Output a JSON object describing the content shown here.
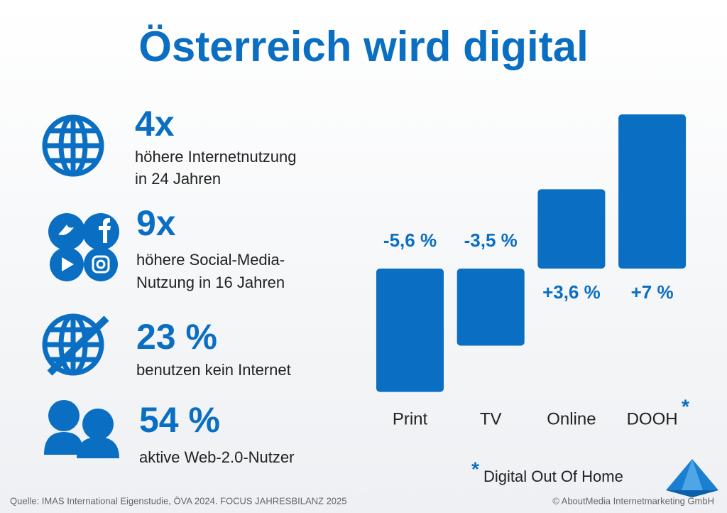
{
  "title": "Österreich wird digital",
  "stats": [
    {
      "value": "4x",
      "description": [
        "höhere Internetnutzung",
        "in 24 Jahren"
      ]
    },
    {
      "value": "9x",
      "description": [
        "höhere Social-Media-",
        "Nutzung in 16 Jahren"
      ]
    },
    {
      "value": "23 %",
      "description": [
        "benutzen kein Internet"
      ]
    },
    {
      "value": "54 %",
      "description": [
        "aktive Web-2.0-Nutzer"
      ]
    }
  ],
  "chart_data": {
    "type": "bar",
    "categories": [
      "Print",
      "TV",
      "Online",
      "DOOH"
    ],
    "values": [
      -5.6,
      -3.5,
      3.6,
      7
    ],
    "value_labels": [
      "-5,6 %",
      "-3,5 %",
      "+3,6 %",
      "+7 %"
    ],
    "color": "#0a6fc2"
  },
  "footnote": {
    "marker": "*",
    "text": "Digital Out Of Home"
  },
  "source": "Quelle: IMAS International Eigenstudie, ÖVA 2024. FOCUS JAHRESBILANZ 2025",
  "copyright": "© AboutMedia Internetmarketing GmbH"
}
